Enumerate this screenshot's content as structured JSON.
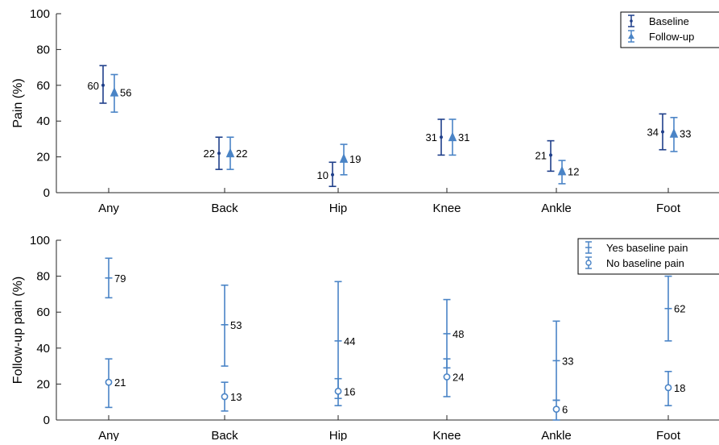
{
  "colors": {
    "baseline": "#1f3f8a",
    "followup": "#4a84c6",
    "axis": "#262626",
    "legend_border": "#000000",
    "background": "#ffffff"
  },
  "chart_data": [
    {
      "type": "errorbar",
      "ylabel": "Pain (%)",
      "xlabel": "",
      "ylim": [
        0,
        100
      ],
      "yticks": [
        0,
        20,
        40,
        60,
        80,
        100
      ],
      "categories": [
        "Any",
        "Back",
        "Hip",
        "Knee",
        "Ankle",
        "Foot"
      ],
      "legend_position": "top-right",
      "grid": false,
      "series": [
        {
          "name": "Baseline",
          "marker": "point",
          "color_key": "baseline",
          "values": [
            60,
            22,
            10,
            31,
            21,
            34
          ],
          "lower": [
            50,
            13,
            3.5,
            21,
            12,
            24
          ],
          "upper": [
            71,
            31,
            17,
            41,
            29,
            44
          ],
          "labels": [
            "60",
            "22",
            "10",
            "31",
            "21",
            "34"
          ],
          "label_side": "left"
        },
        {
          "name": "Follow-up",
          "marker": "triangle",
          "color_key": "followup",
          "values": [
            56,
            22,
            19,
            31,
            12,
            33
          ],
          "lower": [
            45,
            13,
            10,
            21,
            5,
            23
          ],
          "upper": [
            66,
            31,
            27,
            41,
            18,
            42
          ],
          "labels": [
            "56",
            "22",
            "19",
            "31",
            "12",
            "33"
          ],
          "label_side": "right"
        }
      ]
    },
    {
      "type": "errorbar",
      "ylabel": "Follow-up pain (%)",
      "xlabel": "",
      "ylim": [
        0,
        100
      ],
      "yticks": [
        0,
        20,
        40,
        60,
        80,
        100
      ],
      "categories": [
        "Any",
        "Back",
        "Hip",
        "Knee",
        "Ankle",
        "Foot"
      ],
      "legend_position": "top-right",
      "grid": false,
      "series": [
        {
          "name": "Yes baseline pain",
          "marker": "dash",
          "color_key": "followup",
          "values": [
            79,
            53,
            44,
            48,
            33,
            62
          ],
          "lower": [
            68,
            30,
            12,
            29,
            11,
            44
          ],
          "upper": [
            90,
            75,
            77,
            67,
            55,
            80
          ],
          "labels": [
            "79",
            "53",
            "44",
            "48",
            "33",
            "62"
          ],
          "label_side": "right"
        },
        {
          "name": "No baseline pain",
          "marker": "circle",
          "color_key": "followup",
          "values": [
            21,
            13,
            16,
            24,
            6,
            18
          ],
          "lower": [
            7,
            5,
            8,
            13,
            0,
            8
          ],
          "upper": [
            34,
            21,
            23,
            34,
            11,
            27
          ],
          "labels": [
            "21",
            "13",
            "16",
            "24",
            "6",
            "18"
          ],
          "label_side": "right"
        }
      ]
    }
  ]
}
